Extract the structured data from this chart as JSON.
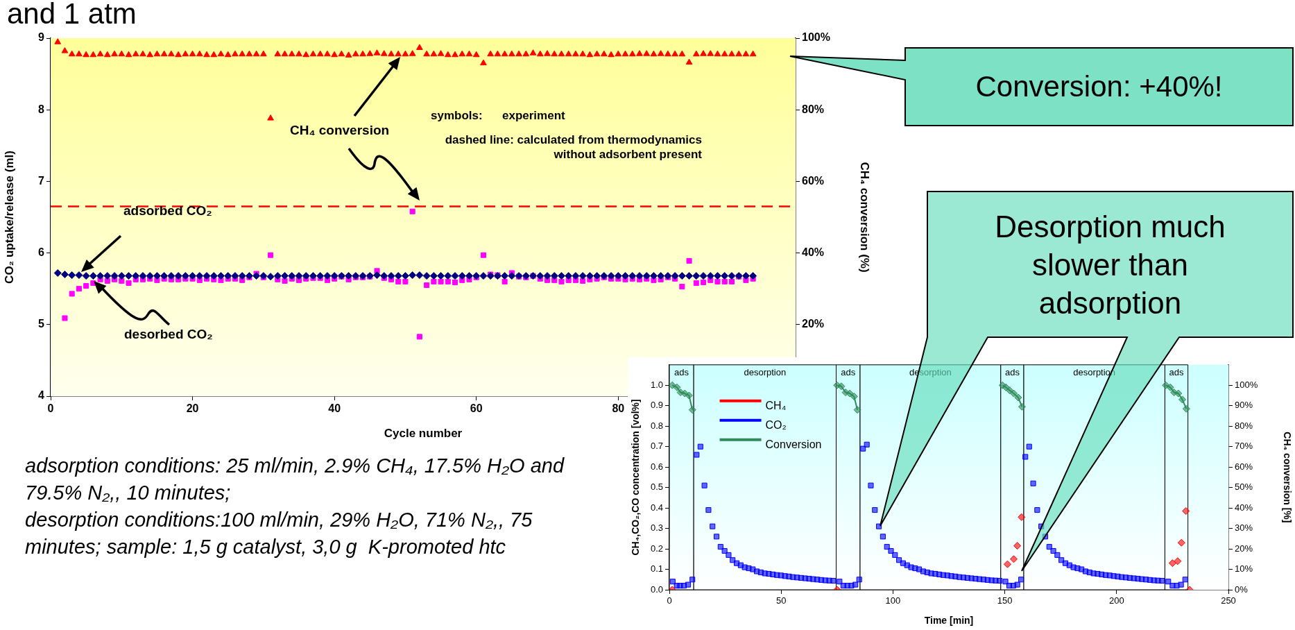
{
  "chart_data": [
    {
      "type": "scatter",
      "title": "and 1 atm",
      "xlabel": "Cycle number",
      "ylabel": "CO₂ uptake/release (ml)",
      "y2label": "CH₄ conversion (%)",
      "x": [
        1,
        2,
        3,
        4,
        5,
        6,
        7,
        8,
        9,
        10,
        11,
        12,
        13,
        14,
        15,
        16,
        17,
        18,
        19,
        20,
        21,
        22,
        23,
        24,
        25,
        26,
        27,
        28,
        29,
        30,
        31,
        32,
        33,
        34,
        35,
        36,
        37,
        38,
        39,
        40,
        41,
        42,
        43,
        44,
        45,
        46,
        47,
        48,
        49,
        50,
        51,
        52,
        53,
        54,
        55,
        56,
        57,
        58,
        59,
        60,
        61,
        62,
        63,
        64,
        65,
        66,
        67,
        68,
        69,
        70,
        71,
        72,
        73,
        74,
        75,
        76,
        77,
        78,
        79,
        80,
        81,
        82,
        83,
        84,
        85,
        86,
        87,
        88,
        89,
        90,
        91,
        92,
        93,
        94,
        95,
        96,
        97,
        98,
        99
      ],
      "xlim": [
        0,
        105
      ],
      "xticks": [
        0,
        20,
        40,
        60,
        80
      ],
      "ylim": [
        4,
        9
      ],
      "yticks": [
        4,
        5,
        6,
        7,
        8,
        9
      ],
      "y2lim": [
        0,
        100
      ],
      "y2ticks": [
        {
          "value": 20,
          "label": "20%"
        },
        {
          "value": 40,
          "label": "40%"
        },
        {
          "value": 60,
          "label": "60%"
        },
        {
          "value": 80,
          "label": "80%"
        },
        {
          "value": 100,
          "label": "100%"
        }
      ],
      "series": [
        {
          "color": "#000080",
          "marker": "diamond",
          "values": [
            5.72,
            5.7,
            5.69,
            5.69,
            5.68,
            5.68,
            5.68,
            5.68,
            5.68,
            5.68,
            5.68,
            5.68,
            5.68,
            5.68,
            5.68,
            5.68,
            5.68,
            5.68,
            5.68,
            5.68,
            5.68,
            5.68,
            5.68,
            5.68,
            5.68,
            5.68,
            5.68,
            5.68,
            5.68,
            5.68,
            5.67,
            5.68,
            5.68,
            5.68,
            5.68,
            5.68,
            5.68,
            5.68,
            5.68,
            5.68,
            5.68,
            5.68,
            5.68,
            5.68,
            5.68,
            5.69,
            5.68,
            5.68,
            5.68,
            5.68,
            5.69,
            5.69,
            5.68,
            5.68,
            5.68,
            5.68,
            5.68,
            5.68,
            5.68,
            5.68,
            5.68,
            5.68,
            5.68,
            5.68,
            5.68,
            5.68,
            5.68,
            5.68,
            5.68,
            5.68,
            5.68,
            5.68,
            5.68,
            5.68,
            5.68,
            5.68,
            5.68,
            5.68,
            5.68,
            5.68,
            5.68,
            5.68,
            5.68,
            5.68,
            5.68,
            5.68,
            5.68,
            5.68,
            5.68,
            5.68,
            5.68,
            5.68,
            5.68,
            5.68,
            5.68,
            5.68,
            5.68,
            5.68,
            5.68
          ]
        },
        {
          "color": "#ff00ff",
          "marker": "square",
          "values": [
            null,
            5.09,
            5.43,
            5.5,
            5.54,
            5.58,
            5.63,
            5.61,
            5.63,
            5.61,
            5.58,
            5.63,
            5.63,
            5.64,
            5.62,
            5.64,
            5.63,
            5.63,
            5.64,
            5.64,
            5.62,
            5.64,
            5.63,
            5.62,
            5.64,
            5.64,
            5.62,
            5.66,
            5.71,
            5.66,
            5.97,
            5.63,
            5.61,
            5.64,
            5.62,
            5.64,
            5.65,
            5.65,
            5.62,
            5.64,
            5.67,
            5.63,
            5.66,
            5.66,
            5.67,
            5.75,
            5.65,
            5.63,
            5.6,
            5.6,
            6.58,
            4.83,
            5.55,
            5.6,
            5.6,
            5.6,
            5.59,
            5.62,
            5.63,
            5.66,
            5.97,
            5.7,
            5.69,
            5.6,
            5.72,
            5.67,
            5.66,
            5.68,
            5.64,
            5.62,
            5.62,
            5.6,
            5.62,
            5.62,
            5.61,
            5.63,
            5.64,
            5.66,
            5.64,
            5.64,
            5.63,
            5.64,
            5.63,
            5.64,
            5.62,
            5.63,
            5.66,
            5.64,
            5.53,
            5.89,
            5.58,
            5.59,
            5.62,
            5.6,
            5.6,
            5.6,
            5.67,
            5.62,
            5.64
          ]
        },
        {
          "color": "#ff0000",
          "marker": "triangle",
          "axis": "y2",
          "values": [
            98.9,
            96.4,
            95.5,
            95.5,
            95.3,
            95.3,
            95.5,
            95.3,
            95.5,
            95.5,
            95.3,
            95.5,
            95.5,
            95.3,
            95.5,
            95.5,
            95.5,
            95.3,
            95.5,
            95.5,
            95.5,
            95.3,
            95.3,
            95.5,
            95.3,
            95.5,
            95.5,
            95.5,
            95.5,
            95.5,
            77.6,
            95.5,
            95.5,
            95.5,
            95.5,
            95.3,
            95.5,
            95.5,
            95.5,
            95.3,
            95.5,
            95.2,
            95.5,
            95.5,
            95.6,
            95.8,
            95.6,
            95.5,
            95.5,
            95.5,
            95.6,
            97.3,
            95.5,
            95.5,
            95.6,
            95.3,
            95.3,
            95.5,
            95.5,
            95.3,
            93.0,
            95.5,
            95.5,
            95.5,
            95.5,
            95.5,
            95.5,
            95.8,
            95.5,
            95.6,
            95.5,
            95.5,
            95.5,
            95.5,
            95.5,
            95.3,
            95.5,
            95.5,
            95.3,
            95.5,
            95.5,
            95.5,
            95.6,
            95.6,
            95.5,
            95.6,
            95.5,
            95.5,
            95.5,
            93.2,
            95.5,
            95.6,
            95.6,
            95.5,
            95.5,
            95.5,
            95.5,
            95.5,
            95.5
          ]
        }
      ],
      "ref_lines": [
        {
          "axis": "y2",
          "value": 53,
          "color": "#ff0000",
          "line_style": "dashed"
        }
      ],
      "annotations": [
        "CH₄ conversion",
        "symbols:      experiment",
        "dashed line: calculated from thermodynamics without adsorbent present",
        "adsorbed CO₂",
        "desorbed CO₂",
        "Conversion: +40%!",
        "Desorption much slower than adsorption",
        "adsorption conditions: 25 ml/min, 2.9% CH₄, 17.5% H₂O and 79.5% N₂,, 10 minutes;",
        "desorption conditions:100 ml/min, 29% H₂O, 71% N₂,, 75 minutes; sample: 1,5 g catalyst, 3,0 g  K-promoted htc"
      ]
    },
    {
      "type": "scatter",
      "xlabel": "Time [min]",
      "ylabel": "CH₄,CO₂,CO concentration [vol%]",
      "y2label": "CH₄ conversion [%]",
      "xlim": [
        0,
        250
      ],
      "xticks": [
        0,
        50,
        100,
        150,
        200,
        250
      ],
      "ylim": [
        0,
        1.1
      ],
      "yticks": [
        {
          "value": 0,
          "label": "0.0"
        },
        0.1,
        0.2,
        0.3,
        0.4,
        0.5,
        0.6,
        0.7,
        0.8,
        0.9,
        {
          "value": 1,
          "label": "1.0"
        }
      ],
      "y2lim": [
        0,
        110
      ],
      "y2ticks": [
        {
          "value": 0,
          "label": "0%"
        },
        {
          "value": 10,
          "label": "10%"
        },
        {
          "value": 20,
          "label": "20%"
        },
        {
          "value": 30,
          "label": "30%"
        },
        {
          "value": 40,
          "label": "40%"
        },
        {
          "value": 50,
          "label": "50%"
        },
        {
          "value": 60,
          "label": "60%"
        },
        {
          "value": 70,
          "label": "70%"
        },
        {
          "value": 80,
          "label": "80%"
        },
        {
          "value": 90,
          "label": "90%"
        },
        {
          "value": 100,
          "label": "100%"
        }
      ],
      "legend": "top left",
      "bands": [
        {
          "axis": "x",
          "from": 0,
          "to": 10.9,
          "label": "ads",
          "color": "#ccffff"
        },
        {
          "axis": "x",
          "from": 10.9,
          "to": 74.6,
          "label": "desorption",
          "color": "#ccffff"
        },
        {
          "axis": "x",
          "from": 74.6,
          "to": 85.3,
          "label": "ads",
          "color": "#ccffff"
        },
        {
          "axis": "x",
          "from": 85.3,
          "to": 148.2,
          "label": "desorption",
          "color": "#ccffff"
        },
        {
          "axis": "x",
          "from": 148.2,
          "to": 158.5,
          "label": "ads",
          "color": "#ccffff"
        },
        {
          "axis": "x",
          "from": 158.5,
          "to": 221.6,
          "label": "desorption",
          "color": "#ccffff"
        },
        {
          "axis": "x",
          "from": 221.6,
          "to": 231.9,
          "label": "ads",
          "color": "#ccffff"
        }
      ],
      "series": [
        {
          "name": "CH₄",
          "color": "#ff0000",
          "marker": "diamond",
          "x": [
            1.3,
            75,
            151.2,
            154,
            155.6,
            157.5,
            225,
            227.3,
            229,
            231,
            232.7
          ],
          "values": [
            0,
            0,
            0.125,
            0.15,
            0.215,
            0.355,
            0.13,
            0.14,
            0.23,
            0.385,
            0
          ]
        },
        {
          "name": "CO₂",
          "color": "#0000ff",
          "marker": "square",
          "x": [
            1.5,
            3.3,
            4.8,
            6.5,
            8.4,
            10.3,
            12.2,
            13.9,
            15.7,
            17.5,
            19.3,
            21.1,
            22.9,
            24.7,
            26.5,
            28.3,
            30.1,
            31.9,
            33.7,
            35.5,
            37.3,
            39.1,
            40.9,
            42.7,
            44.5,
            46.3,
            48.1,
            49.9,
            51.7,
            53.5,
            55.3,
            57.1,
            58.9,
            60.7,
            62.5,
            64.3,
            66.1,
            67.9,
            69.7,
            71.5,
            73.3,
            76.1,
            77.8,
            79.6,
            81.4,
            83.2,
            84.9,
            86.6,
            88.3,
            90.1,
            91.9,
            93.7,
            95.5,
            97.3,
            99.1,
            100.9,
            102.7,
            104.5,
            106.3,
            108.1,
            109.9,
            111.7,
            113.5,
            115.3,
            117.1,
            118.9,
            120.7,
            122.5,
            124.3,
            126.1,
            127.9,
            129.7,
            131.5,
            133.3,
            135.1,
            136.9,
            138.7,
            140.5,
            142.3,
            144.1,
            145.9,
            147.7,
            150.3,
            152,
            153.8,
            155.6,
            157.3,
            159.2,
            160.9,
            162.7,
            164.5,
            166.3,
            168.1,
            169.9,
            171.7,
            173.5,
            175.3,
            177.1,
            178.9,
            180.7,
            182.5,
            184.3,
            186.1,
            187.9,
            189.7,
            191.5,
            193.3,
            195.1,
            196.9,
            198.7,
            200.5,
            202.3,
            204.1,
            205.9,
            207.7,
            209.5,
            211.3,
            213.1,
            214.9,
            216.7,
            218.5,
            220.3,
            223.1,
            225,
            226.9,
            228.8,
            230.7
          ],
          "values": [
            0.04,
            0.02,
            0.02,
            0.02,
            0.025,
            0.05,
            0.66,
            0.7,
            0.51,
            0.39,
            0.31,
            0.26,
            0.21,
            0.19,
            0.17,
            0.145,
            0.13,
            0.12,
            0.11,
            0.105,
            0.1,
            0.09,
            0.085,
            0.08,
            0.078,
            0.075,
            0.072,
            0.07,
            0.067,
            0.065,
            0.062,
            0.06,
            0.058,
            0.056,
            0.054,
            0.052,
            0.05,
            0.048,
            0.046,
            0.045,
            0.044,
            0.04,
            0.02,
            0.02,
            0.02,
            0.025,
            0.05,
            0.69,
            0.71,
            0.51,
            0.39,
            0.31,
            0.26,
            0.21,
            0.19,
            0.17,
            0.145,
            0.13,
            0.12,
            0.11,
            0.105,
            0.1,
            0.09,
            0.085,
            0.08,
            0.078,
            0.075,
            0.072,
            0.07,
            0.067,
            0.065,
            0.062,
            0.06,
            0.058,
            0.056,
            0.054,
            0.052,
            0.05,
            0.048,
            0.046,
            0.045,
            0.044,
            0.04,
            0.02,
            0.02,
            0.025,
            0.05,
            0.65,
            0.7,
            0.52,
            0.39,
            0.31,
            0.26,
            0.21,
            0.19,
            0.17,
            0.145,
            0.13,
            0.12,
            0.11,
            0.105,
            0.1,
            0.09,
            0.085,
            0.08,
            0.078,
            0.075,
            0.072,
            0.07,
            0.067,
            0.065,
            0.062,
            0.06,
            0.058,
            0.056,
            0.054,
            0.052,
            0.05,
            0.048,
            0.046,
            0.045,
            0.044,
            0.04,
            0.02,
            0.02,
            0.025,
            0.05
          ]
        },
        {
          "name": "Conversion",
          "color": "#2e8b57",
          "type": "line",
          "marker": "diamond",
          "axis": "y2",
          "x": [
            1.3,
            3.4,
            5,
            6.9,
            8.8,
            10.3,
            11,
            75,
            76.9,
            78.8,
            80.7,
            82.6,
            84.1,
            86,
            149,
            150.5,
            152.2,
            154,
            156,
            157.7,
            159,
            222,
            224,
            225.7,
            227.6,
            229.4,
            231.2
          ],
          "values": [
            100,
            99,
            96.5,
            96,
            95,
            88,
            null,
            100,
            99.5,
            96.5,
            96,
            94.5,
            88,
            null,
            100,
            99,
            97.5,
            96,
            94,
            89.5,
            null,
            100,
            99,
            96.5,
            96,
            93,
            88.5
          ]
        }
      ]
    }
  ]
}
